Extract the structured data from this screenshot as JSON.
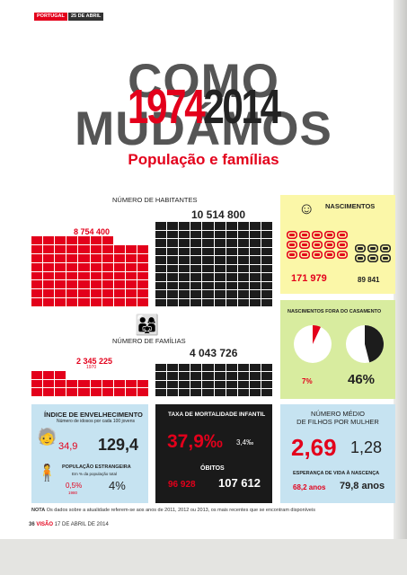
{
  "header": {
    "section": "PORTUGAL",
    "issue_tag": "25 DE ABRIL"
  },
  "title": {
    "line1": "COMO MUDÁMOS",
    "year_start": "1974",
    "year_end": "2014",
    "subtitle": "População e famílias"
  },
  "population": {
    "label": "NÚMERO DE HABITANTES",
    "value_1974": "8 754 400",
    "value_2014": "10 514 800"
  },
  "families": {
    "label": "NÚMERO DE FAMÍLIAS",
    "value_1974": "2 345 225",
    "year_note": "1970",
    "value_2014": "4 043 726"
  },
  "births": {
    "label": "NASCIMENTOS",
    "value_1974": "171 979",
    "value_2014": "89 841"
  },
  "births_outside": {
    "label": "NASCIMENTOS FORA DO CASAMENTO",
    "pct_1974": "7%",
    "pct_2014": "46%",
    "fraction_1974": 0.07,
    "fraction_2014": 0.46
  },
  "aging": {
    "title": "ÍNDICE DE ENVELHECIMENTO",
    "note": "Número de idosos por cada 100 jovens",
    "value_1974": "34,9",
    "value_2014": "129,4"
  },
  "foreign": {
    "title": "POPULAÇÃO ESTRANGEIRA",
    "note": "Em % da população total",
    "value_1974": "0,5%",
    "year_note": "1980",
    "value_2014": "4%"
  },
  "infant_mortality": {
    "title": "TAXA DE MORTALIDADE INFANTIL",
    "value_1974": "37,9‰",
    "value_2014": "3,4‰"
  },
  "deaths": {
    "title": "ÓBITOS",
    "value_1974": "96 928",
    "value_2014": "107 612"
  },
  "fertility": {
    "title_line1": "NÚMERO MÉDIO",
    "title_line2": "DE FILHOS POR MULHER",
    "value_1974": "2,69",
    "value_2014": "1,28"
  },
  "life_expectancy": {
    "title": "ESPERANÇA DE VIDA À NASCENÇA",
    "value_1974": "68,2 anos",
    "value_2014": "79,8 anos"
  },
  "note": {
    "label": "NOTA",
    "text": "Os dados sobre a atualidade referem-se aos anos de 2011, 2012 ou 2013, os mais recentes que se encontram disponíveis"
  },
  "page_footer": {
    "page_number": "36",
    "brand": "VISÃO",
    "date": "17 DE ABRIL DE 2014"
  },
  "colors": {
    "accent": "#e3001b",
    "dark": "#1c1c1c",
    "yellow": "#fbf7a8",
    "green": "#d8ec9f",
    "blue": "#c6e3f1"
  },
  "icons": [
    "baby-face-icon",
    "family-icon",
    "elderly-person-icon",
    "foreign-person-icon"
  ]
}
